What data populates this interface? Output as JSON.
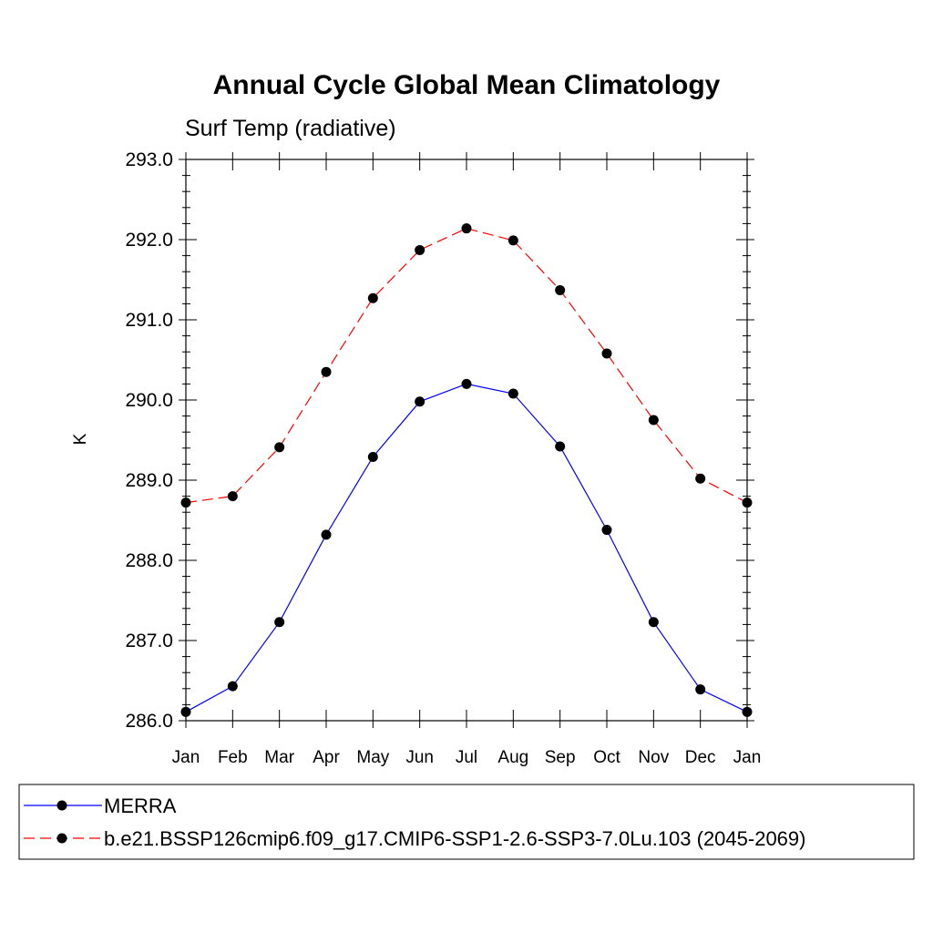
{
  "chart_data": {
    "type": "line",
    "title": "Annual Cycle Global Mean Climatology",
    "subtitle": "Surf Temp (radiative)",
    "xlabel": "",
    "ylabel": "K",
    "categories": [
      "Jan",
      "Feb",
      "Mar",
      "Apr",
      "May",
      "Jun",
      "Jul",
      "Aug",
      "Sep",
      "Oct",
      "Nov",
      "Dec",
      "Jan"
    ],
    "ylim": [
      286.0,
      293.0
    ],
    "yticks": [
      "286.0",
      "287.0",
      "288.0",
      "289.0",
      "290.0",
      "291.0",
      "292.0",
      "293.0"
    ],
    "grid": false,
    "legend_position": "bottom",
    "series": [
      {
        "name": "MERRA",
        "color": "#0000ff",
        "line_style": "solid",
        "marker": "filled-circle",
        "values": [
          286.11,
          286.43,
          287.23,
          288.32,
          289.29,
          289.98,
          290.2,
          290.08,
          289.42,
          288.38,
          287.23,
          286.39,
          286.11
        ]
      },
      {
        "name": "b.e21.BSSP126cmip6.f09_g17.CMIP6-SSP1-2.6-SSP3-7.0Lu.103 (2045-2069)",
        "color": "#ff0000",
        "line_style": "dashed",
        "marker": "filled-circle",
        "values": [
          288.72,
          288.8,
          289.41,
          290.35,
          291.27,
          291.87,
          292.14,
          291.99,
          291.37,
          290.58,
          289.75,
          289.02,
          288.72
        ]
      }
    ]
  }
}
